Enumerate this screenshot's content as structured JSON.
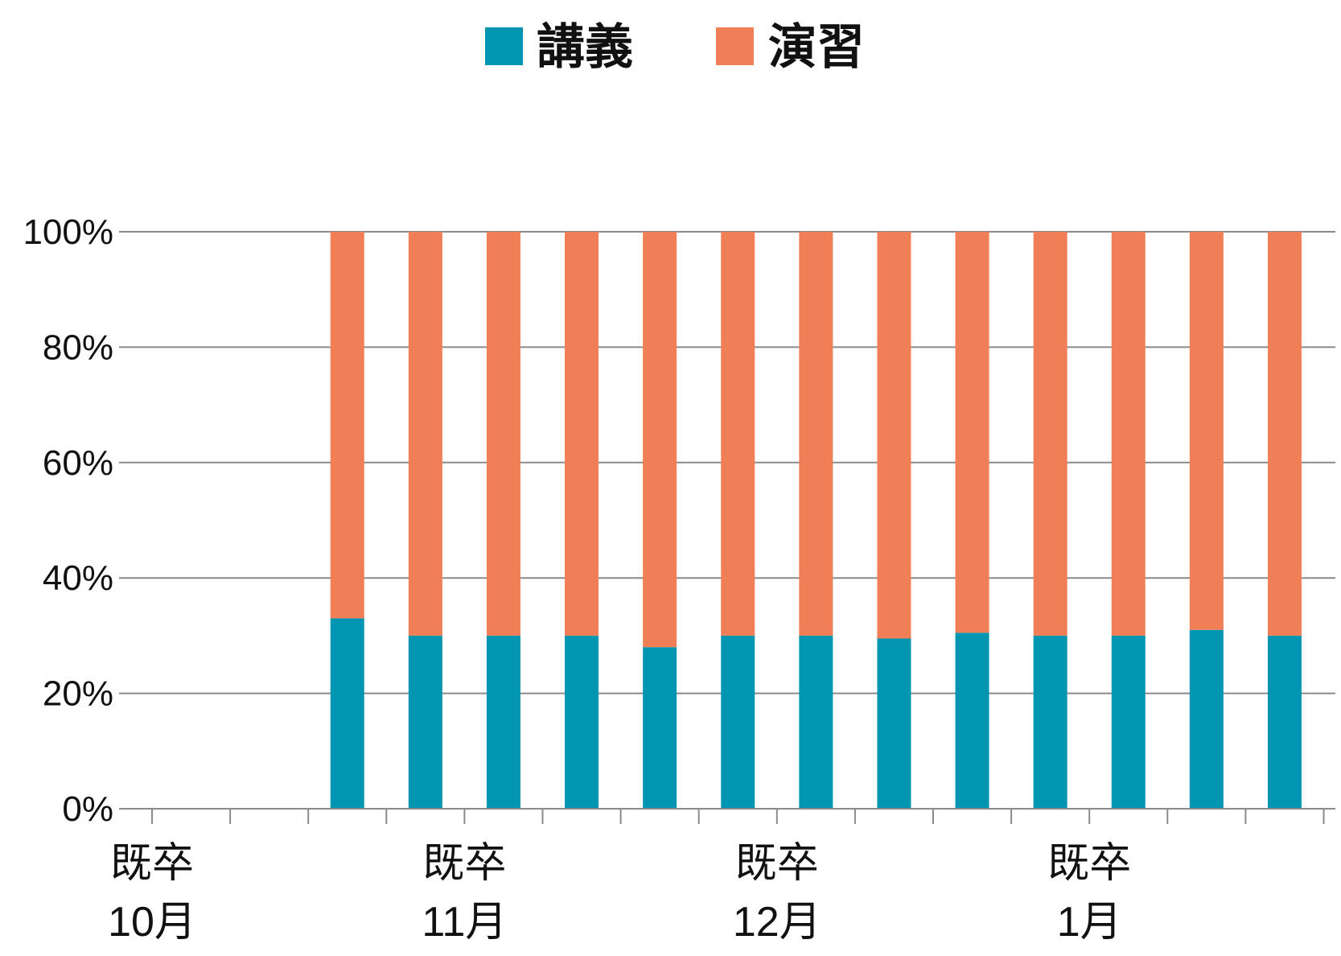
{
  "chart_data": {
    "type": "bar",
    "stacked": true,
    "stack_mode": "percent",
    "legend_position": "top-center",
    "grid": true,
    "ylim": [
      0,
      100
    ],
    "yticks": [
      "0%",
      "20%",
      "40%",
      "60%",
      "80%",
      "100%"
    ],
    "x_labels": [
      {
        "line1": "既卒",
        "line2": "10月",
        "at_slot": 0
      },
      {
        "line1": "既卒",
        "line2": "11月",
        "at_slot": 4
      },
      {
        "line1": "既卒",
        "line2": "12月",
        "at_slot": 8
      },
      {
        "line1": "既卒",
        "line2": "1月",
        "at_slot": 12
      }
    ],
    "slot_count": 15,
    "series": [
      {
        "name": "講義",
        "color": "#0095b0",
        "values": [
          null,
          null,
          33,
          30,
          30,
          30,
          28,
          30,
          30,
          29.5,
          30.5,
          30,
          30,
          31,
          30
        ]
      },
      {
        "name": "演習",
        "color": "#f07e56",
        "values": [
          null,
          null,
          67,
          70,
          70,
          70,
          72,
          70,
          70,
          70.5,
          69.5,
          70,
          70,
          69,
          70
        ]
      }
    ]
  }
}
